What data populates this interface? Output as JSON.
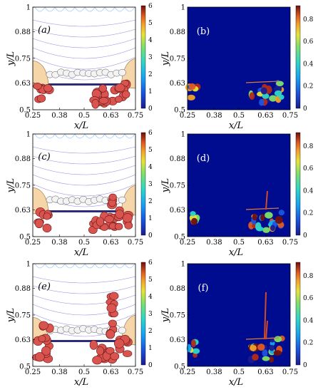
{
  "colors": {
    "left_map": [
      "#1b1b8f",
      "#1a55e0",
      "#19a3f0",
      "#2fd6c8",
      "#7de06a",
      "#e8e23a",
      "#f2a12a",
      "#e05a20",
      "#b22a1a",
      "#6e0f0f"
    ],
    "right_map": [
      "#1b1b8f",
      "#1a55e0",
      "#19a3f0",
      "#2fd6c8",
      "#7de06a",
      "#e8e23a",
      "#f2a12a",
      "#e05a20",
      "#b22a1a",
      "#6e0f0f"
    ],
    "right_background": "#000c8f",
    "cell_red": "#d9534f",
    "cell_outline": "#6a1515",
    "bubble_fill": "#f3f3f3",
    "wall_fill": "#f6d5a8",
    "bar_fill": "#2c2c7a",
    "contour": "#9b8ce0"
  },
  "axes": {
    "x_ticks": [
      "0.25",
      "0.38",
      "0.5",
      "0.63",
      "0.75"
    ],
    "y_ticks": [
      "0.5",
      "0.63",
      "0.75",
      "0.88",
      "1"
    ],
    "x_label": "x/L",
    "y_label": "y/L"
  },
  "colorbars": {
    "left_ticks": [
      "0",
      "1",
      "2",
      "3",
      "4",
      "5",
      "6"
    ],
    "right_ticks": [
      "0",
      "0.2",
      "0.4",
      "0.6",
      "0.8"
    ]
  },
  "panels": [
    {
      "label": "(a)",
      "kind": "left"
    },
    {
      "label": "(b)",
      "kind": "right"
    },
    {
      "label": "(c)",
      "kind": "left"
    },
    {
      "label": "(d)",
      "kind": "right"
    },
    {
      "label": "(e)",
      "kind": "left"
    },
    {
      "label": "(f)",
      "kind": "right"
    }
  ]
}
